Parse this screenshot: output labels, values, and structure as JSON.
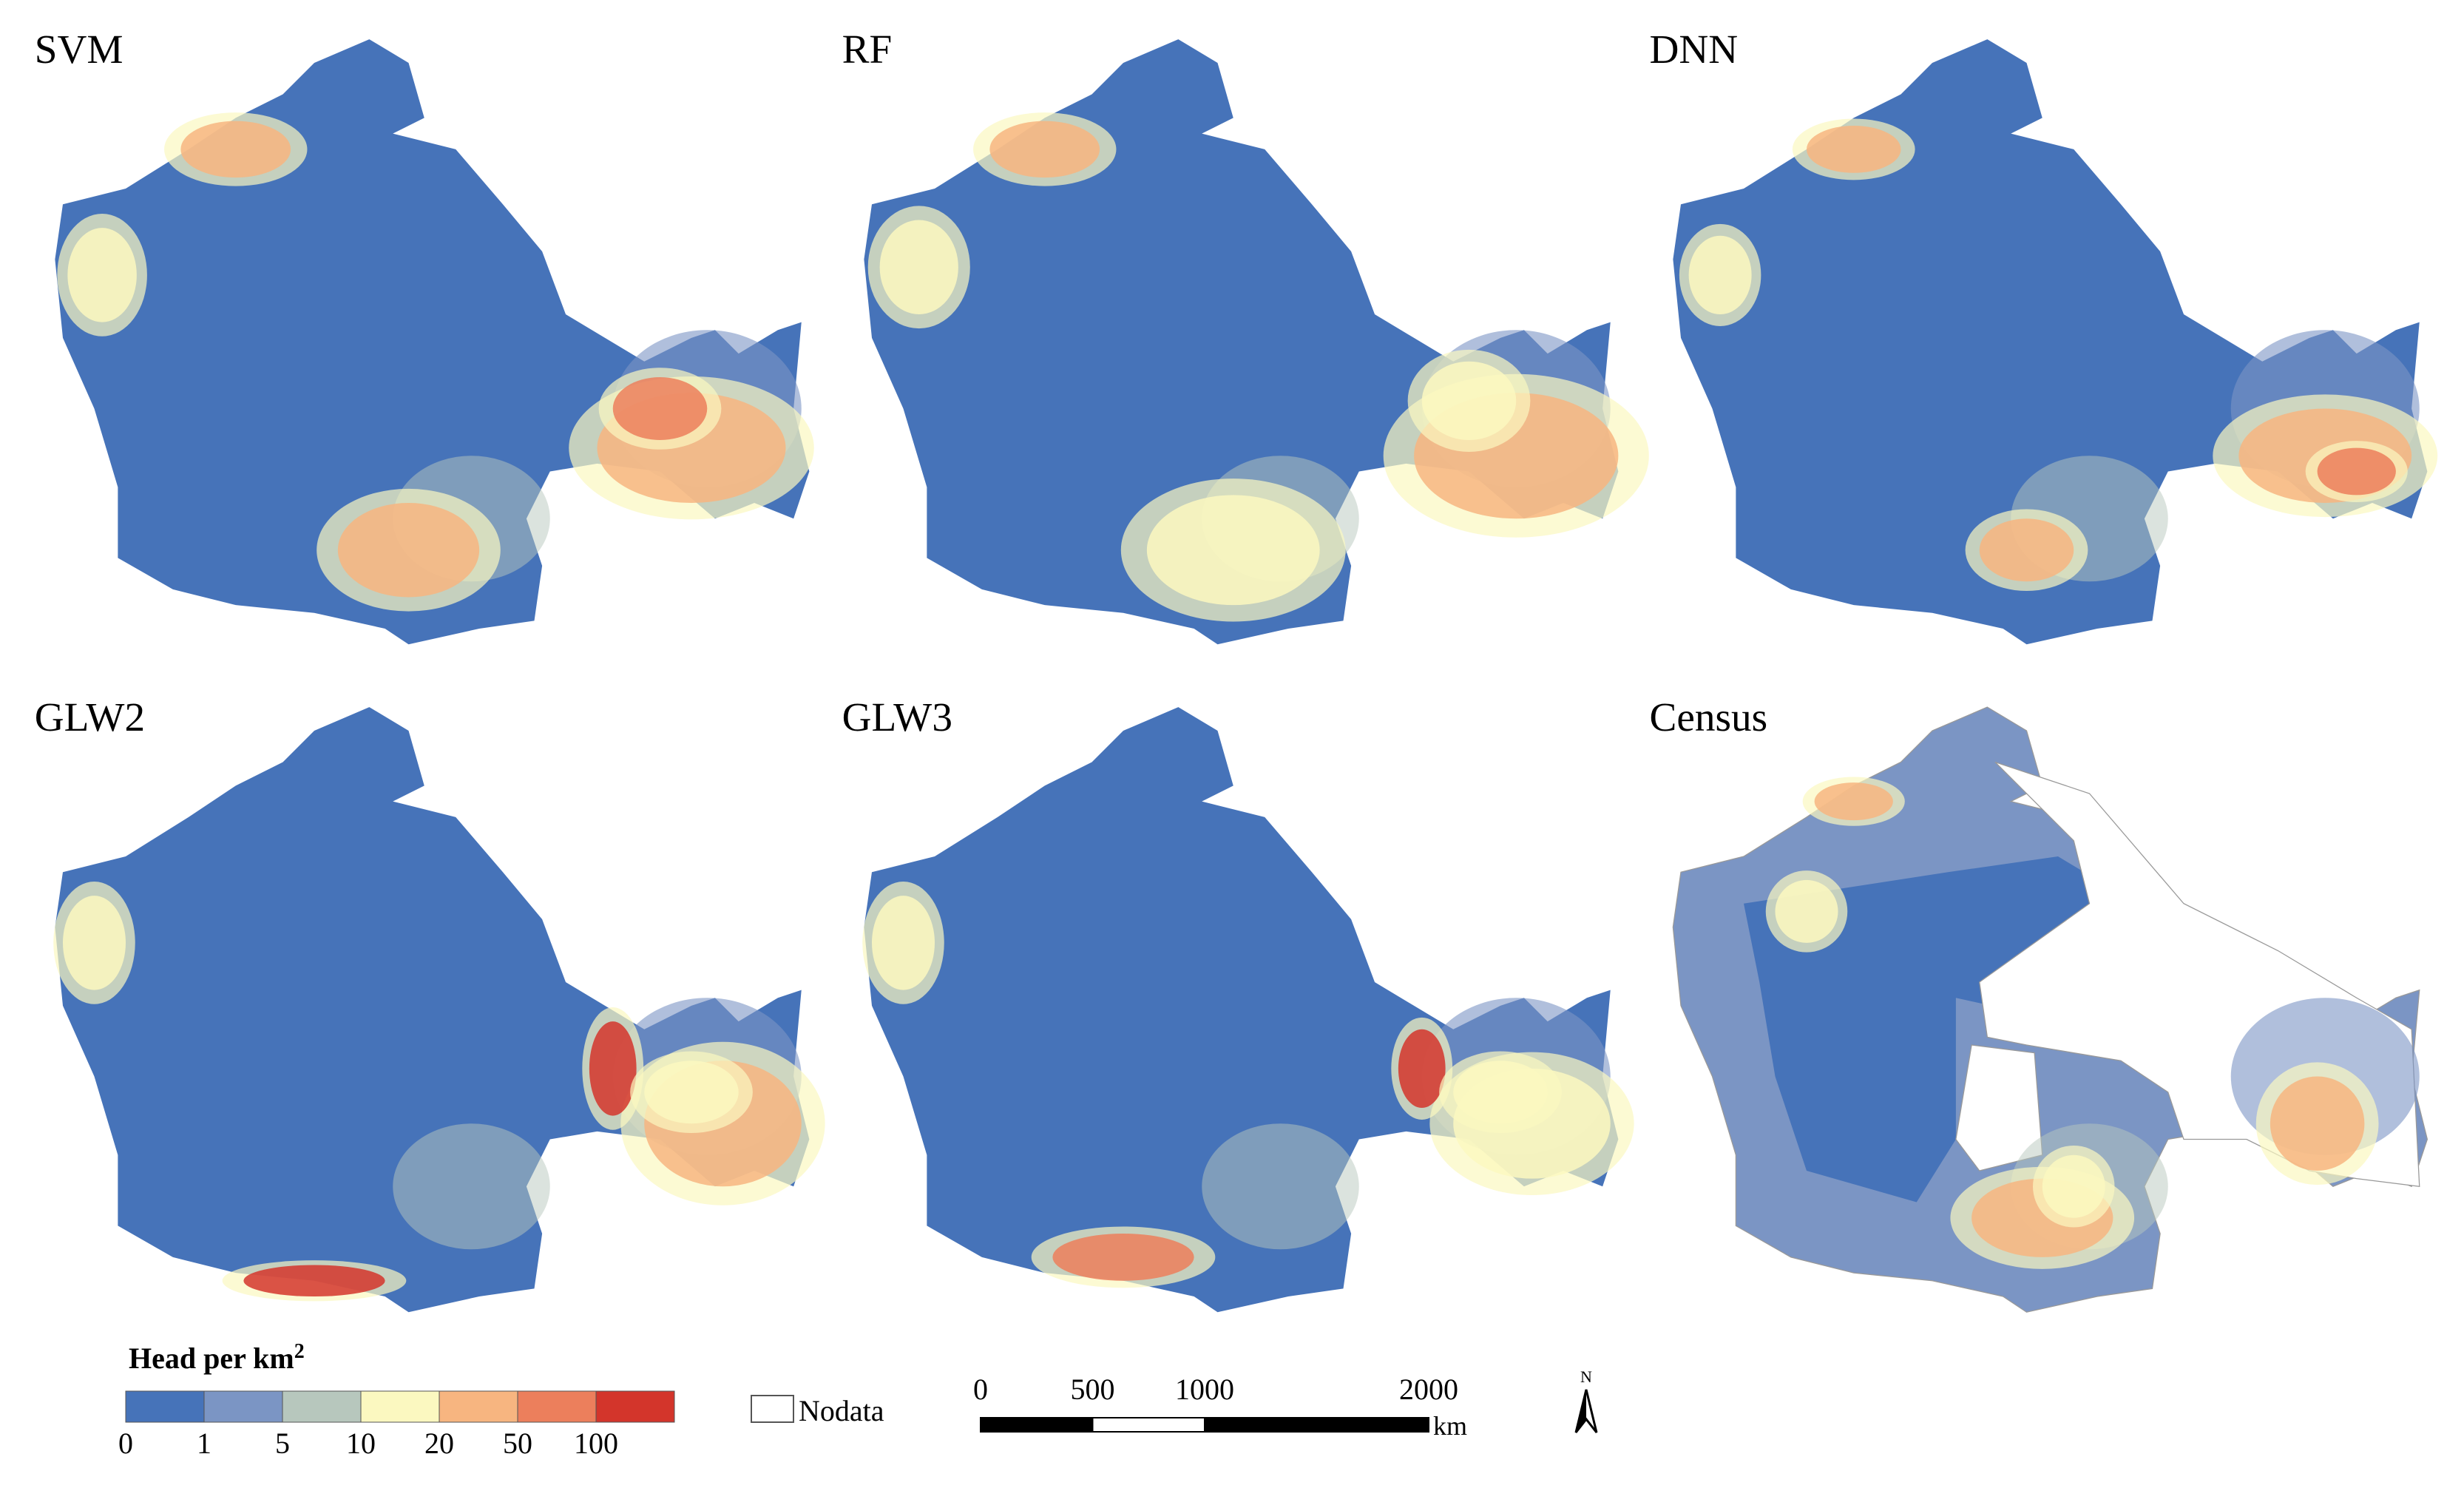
{
  "panels": [
    {
      "title": "SVM"
    },
    {
      "title": "RF"
    },
    {
      "title": "DNN"
    },
    {
      "title": "GLW2"
    },
    {
      "title": "GLW3"
    },
    {
      "title": "Census"
    }
  ],
  "legend": {
    "title": "Head per km",
    "title_sup": "2",
    "breaks": [
      0,
      1,
      5,
      10,
      20,
      50,
      100
    ],
    "colors": [
      "#4673b9",
      "#7b95c4",
      "#b7c7bd",
      "#fbf8c0",
      "#f7b580",
      "#ec7f5c",
      "#d3352b"
    ],
    "nodata": "Nodata"
  },
  "scale_bar": {
    "ticks": [
      0,
      500,
      1000,
      2000
    ],
    "unit": "km"
  },
  "north": "N"
}
